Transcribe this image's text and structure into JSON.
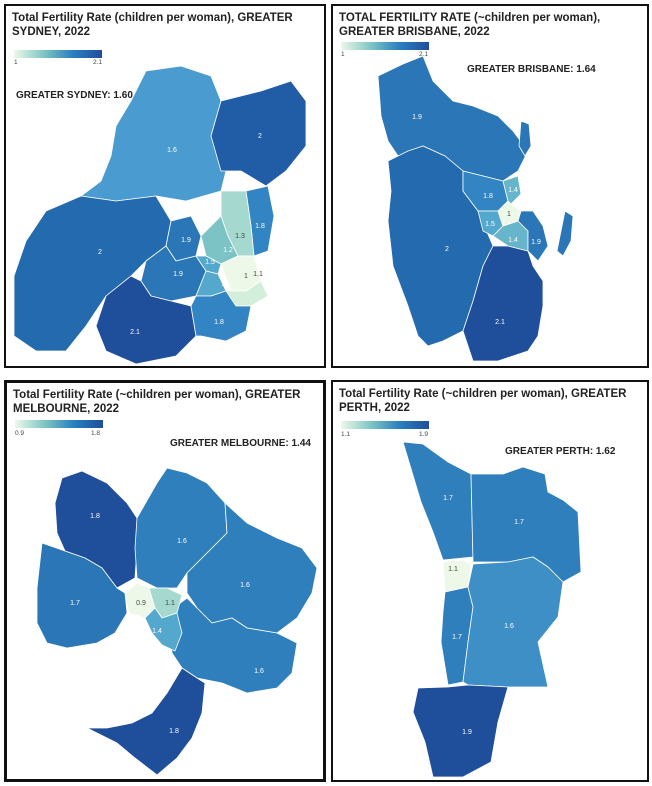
{
  "panels": {
    "sydney": {
      "title": "Total Fertility Rate (children per woman), GREATER SYDNEY, 2022",
      "legend_min": "1",
      "legend_max": "2.1",
      "total_label": "GREATER SYDNEY: 1.60",
      "regions": [
        {
          "id": "syd-nw",
          "value": "1.6",
          "color": "#4a9bcf"
        },
        {
          "id": "syd-ne",
          "value": "2",
          "color": "#215ca6"
        },
        {
          "id": "syd-w",
          "value": "2",
          "color": "#236aaf"
        },
        {
          "id": "syd-c1",
          "value": "1.9",
          "color": "#2a76b7"
        },
        {
          "id": "syd-c2",
          "value": "1.9",
          "color": "#2a76b7"
        },
        {
          "id": "syd-sw",
          "value": "2.1",
          "color": "#1f4e9b"
        },
        {
          "id": "syd-e1",
          "value": "1.8",
          "color": "#3384c2"
        },
        {
          "id": "syd-e2",
          "value": "1.3",
          "color": "#a5d8cf"
        },
        {
          "id": "syd-e3",
          "value": "1.2",
          "color": "#7cc3c6"
        },
        {
          "id": "syd-e4",
          "value": "1.5",
          "color": "#55a8cd"
        },
        {
          "id": "syd-e5",
          "value": "1.5",
          "color": "#55a8cd"
        },
        {
          "id": "syd-e6",
          "value": "1",
          "color": "#edf8e9"
        },
        {
          "id": "syd-e7",
          "value": "1.1",
          "color": "#d3eedb"
        },
        {
          "id": "syd-s",
          "value": "1.8",
          "color": "#3384c2"
        }
      ]
    },
    "brisbane": {
      "title": "TOTAL FERTILITY RATE (~children per woman), GREATER BRISBANE, 2022",
      "legend_min": "1",
      "legend_max": "2.1",
      "total_label": "GREATER BRISBANE: 1.64",
      "regions": [
        {
          "id": "bri-n",
          "value": "1.9",
          "color": "#2a76b7"
        },
        {
          "id": "bri-w",
          "value": "2",
          "color": "#236aaf"
        },
        {
          "id": "bri-s",
          "value": "2.1",
          "color": "#1f4e9b"
        },
        {
          "id": "bri-c1",
          "value": "1.8",
          "color": "#3384c2"
        },
        {
          "id": "bri-c2",
          "value": "1.4",
          "color": "#66b5cb"
        },
        {
          "id": "bri-c3",
          "value": "1.5",
          "color": "#55a8cd"
        },
        {
          "id": "bri-c4",
          "value": "1.4",
          "color": "#66b5cb"
        },
        {
          "id": "bri-c5",
          "value": "1",
          "color": "#edf8e9"
        },
        {
          "id": "bri-e",
          "value": "1.9",
          "color": "#2a76b7"
        },
        {
          "id": "bri-isl",
          "value": "",
          "color": "#2a76b7"
        }
      ]
    },
    "melbourne": {
      "title": "Total Fertility Rate (~children per woman), GREATER MELBOURNE, 2022",
      "legend_min": "0.9",
      "legend_max": "1.8",
      "total_label": "GREATER MELBOURNE: 1.44",
      "regions": [
        {
          "id": "mel-nw",
          "value": "1.8",
          "color": "#1f4e9b"
        },
        {
          "id": "mel-w",
          "value": "1.7",
          "color": "#2a76b7"
        },
        {
          "id": "mel-n",
          "value": "1.6",
          "color": "#2f7fbd"
        },
        {
          "id": "mel-ne",
          "value": "1.6",
          "color": "#2f7fbd"
        },
        {
          "id": "mel-e",
          "value": "1.6",
          "color": "#2f7fbd"
        },
        {
          "id": "mel-c1",
          "value": "0.9",
          "color": "#edf8e9"
        },
        {
          "id": "mel-c2",
          "value": "1.1",
          "color": "#a5d8cf"
        },
        {
          "id": "mel-c3",
          "value": "1.4",
          "color": "#55a8cd"
        },
        {
          "id": "mel-s",
          "value": "1.8",
          "color": "#1f4e9b"
        }
      ]
    },
    "perth": {
      "title": "Total Fertility Rate (~children per woman), GREATER PERTH, 2022",
      "legend_min": "1.1",
      "legend_max": "1.9",
      "total_label": "GREATER PERTH: 1.62",
      "regions": [
        {
          "id": "per-nw",
          "value": "1.7",
          "color": "#2f7fbd"
        },
        {
          "id": "per-ne",
          "value": "1.7",
          "color": "#2f7fbd"
        },
        {
          "id": "per-c",
          "value": "1.1",
          "color": "#edf8e9"
        },
        {
          "id": "per-w",
          "value": "1.7",
          "color": "#2f7fbd"
        },
        {
          "id": "per-e",
          "value": "1.6",
          "color": "#3d8fc6"
        },
        {
          "id": "per-s",
          "value": "1.9",
          "color": "#1f4e9b"
        }
      ]
    }
  }
}
